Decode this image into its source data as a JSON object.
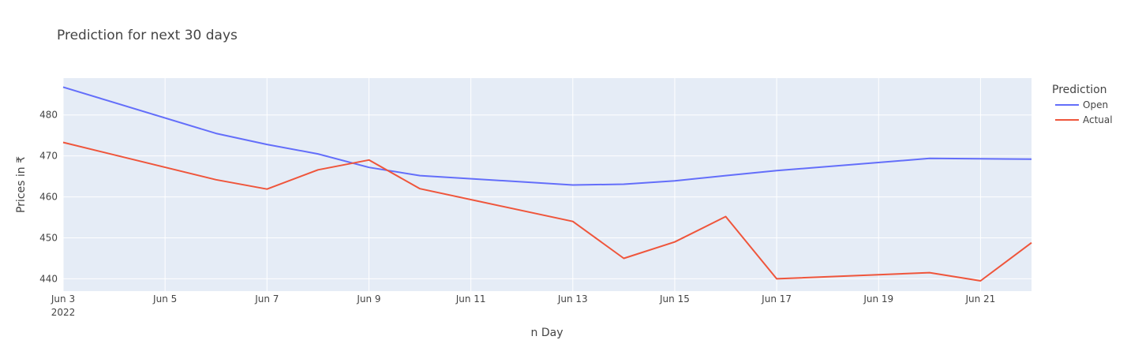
{
  "chart_data": {
    "type": "line",
    "title": "Prediction for next 30 days",
    "xlabel": "n Day",
    "ylabel": "Prices in ₹",
    "legend_title": "Prediction",
    "legend_position": "right",
    "grid": true,
    "background": "#E5ECF6",
    "x": [
      "2022-06-03",
      "2022-06-06",
      "2022-06-07",
      "2022-06-08",
      "2022-06-09",
      "2022-06-10",
      "2022-06-13",
      "2022-06-14",
      "2022-06-15",
      "2022-06-16",
      "2022-06-17",
      "2022-06-20",
      "2022-06-21",
      "2022-06-22"
    ],
    "xlim": [
      "2022-06-03",
      "2022-06-22"
    ],
    "ylim": [
      437,
      489
    ],
    "x_ticks": [
      {
        "date": "2022-06-03",
        "label": "Jun 3",
        "sublabel": "2022"
      },
      {
        "date": "2022-06-05",
        "label": "Jun 5"
      },
      {
        "date": "2022-06-07",
        "label": "Jun 7"
      },
      {
        "date": "2022-06-09",
        "label": "Jun 9"
      },
      {
        "date": "2022-06-11",
        "label": "Jun 11"
      },
      {
        "date": "2022-06-13",
        "label": "Jun 13"
      },
      {
        "date": "2022-06-15",
        "label": "Jun 15"
      },
      {
        "date": "2022-06-17",
        "label": "Jun 17"
      },
      {
        "date": "2022-06-19",
        "label": "Jun 19"
      },
      {
        "date": "2022-06-21",
        "label": "Jun 21"
      }
    ],
    "y_ticks": [
      440,
      450,
      460,
      470,
      480
    ],
    "series": [
      {
        "name": "Open",
        "color": "#636EFA",
        "values": [
          486.8,
          475.5,
          472.8,
          470.5,
          467.2,
          465.2,
          462.9,
          463.1,
          463.9,
          465.2,
          466.4,
          469.4,
          469.3,
          469.2
        ]
      },
      {
        "name": "Actual",
        "color": "#EF553B",
        "values": [
          473.3,
          464.2,
          461.9,
          466.6,
          469.0,
          462.0,
          454.0,
          445.0,
          449.0,
          455.2,
          440.0,
          441.5,
          439.5,
          448.8
        ]
      }
    ]
  }
}
